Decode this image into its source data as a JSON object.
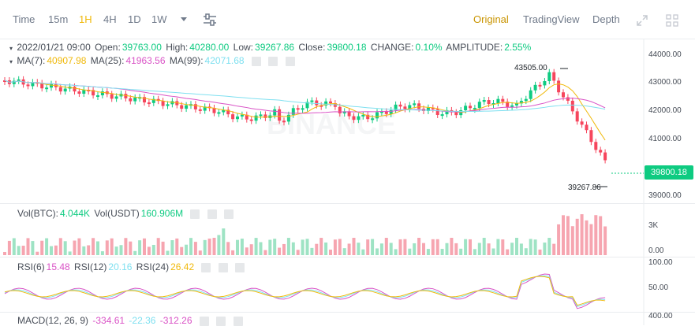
{
  "toolbar": {
    "intervals": [
      "Time",
      "15m",
      "1H",
      "4H",
      "1D",
      "1W"
    ],
    "active_interval": "1H",
    "views": [
      "Original",
      "TradingView",
      "Depth"
    ],
    "active_view": "Original"
  },
  "ohlc": {
    "date": "2022/01/21 09:00",
    "open_label": "Open:",
    "open": "39763.00",
    "high_label": "High:",
    "high": "40280.00",
    "low_label": "Low:",
    "low": "39267.86",
    "close_label": "Close:",
    "close": "39800.18",
    "change_label": "CHANGE:",
    "change": "0.10%",
    "amplitude_label": "AMPLITUDE:",
    "amplitude": "2.55%"
  },
  "ma": {
    "ma7_label": "MA(7):",
    "ma7": "40907.98",
    "ma25_label": "MA(25):",
    "ma25": "41963.56",
    "ma99_label": "MA(99):",
    "ma99": "42071.68"
  },
  "vol": {
    "btc_label": "Vol(BTC):",
    "btc": "4.044K",
    "usdt_label": "Vol(USDT)",
    "usdt": "160.906M"
  },
  "rsi": {
    "rsi6_label": "RSI(6)",
    "rsi6": "15.48",
    "rsi12_label": "RSI(12)",
    "rsi12": "20.16",
    "rsi24_label": "RSI(24)",
    "rsi24": "26.42"
  },
  "macd": {
    "label": "MACD(12, 26, 9)",
    "v1": "-334.61",
    "v2": "-22.36",
    "v3": "-312.26"
  },
  "price_axis": [
    "44000.00",
    "43000.00",
    "42000.00",
    "41000.00",
    "40000.00",
    "39000.00"
  ],
  "vol_axis": [
    "3K",
    "0.00"
  ],
  "rsi_axis": [
    "100.00",
    "50.00"
  ],
  "macd_axis": [
    "400.00"
  ],
  "last_price": "39800.18",
  "high_marker": "43505.00",
  "low_marker": "39267.86",
  "watermark": "BINANCE",
  "colors": {
    "up": "#0ecb81",
    "down": "#f6465d",
    "ma7": "#f0b90b",
    "ma25": "#d952c6",
    "ma99": "#7fe0f0",
    "accent": "#f0b90b"
  }
}
